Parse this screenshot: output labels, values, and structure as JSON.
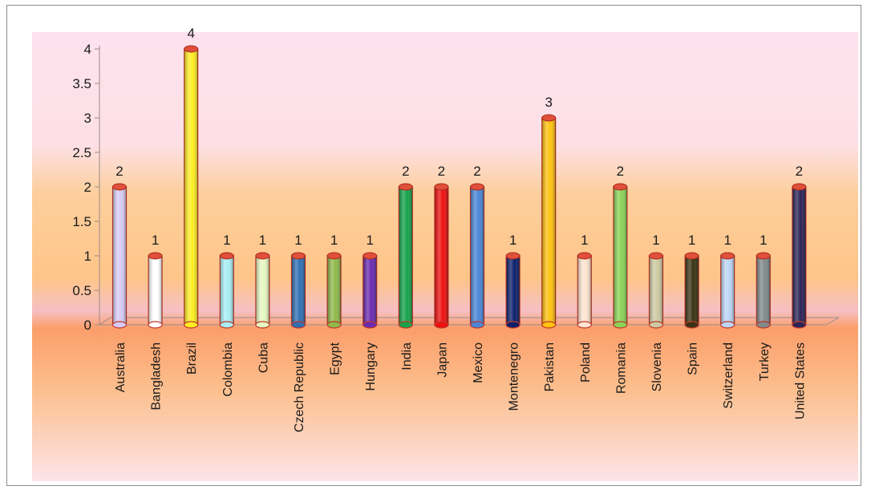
{
  "chart_data": {
    "type": "bar",
    "style": "3d-cylinder",
    "categories": [
      "Australia",
      "Bangladesh",
      "Brazil",
      "Colombia",
      "Cuba",
      "Czech Republic",
      "Egypt",
      "Hungary",
      "India",
      "Japan",
      "Mexico",
      "Montenegro",
      "Pakistan",
      "Poland",
      "Romania",
      "Slovenia",
      "Spain",
      "Switzerland",
      "Turkey",
      "United States"
    ],
    "values": [
      2,
      1,
      4,
      1,
      1,
      1,
      1,
      1,
      2,
      2,
      2,
      1,
      3,
      1,
      2,
      1,
      1,
      1,
      1,
      2
    ],
    "colors": [
      "#d7cbf5",
      "#ffffff",
      "#ffee22",
      "#a8eef5",
      "#e6f7c2",
      "#2f6fb3",
      "#8fb94a",
      "#6a2bb0",
      "#15a34a",
      "#ee1010",
      "#4a86d8",
      "#0b1f6b",
      "#ffc20e",
      "#fde4cf",
      "#89d457",
      "#cdc9a2",
      "#3a3314",
      "#bcd6f5",
      "#7f8a8c",
      "#2b2356"
    ],
    "yticks": [
      "0",
      "0.5",
      "1",
      "1.5",
      "2",
      "2.5",
      "3",
      "3.5",
      "4"
    ],
    "ylim": [
      0,
      4
    ],
    "data_labels": [
      "2",
      "1",
      "4",
      "1",
      "1",
      "1",
      "1",
      "1",
      "2",
      "2",
      "2",
      "1",
      "3",
      "1",
      "2",
      "1",
      "1",
      "1",
      "1",
      "2"
    ],
    "title": "",
    "xlabel": "",
    "ylabel": "",
    "legend": "none",
    "grid": false
  }
}
